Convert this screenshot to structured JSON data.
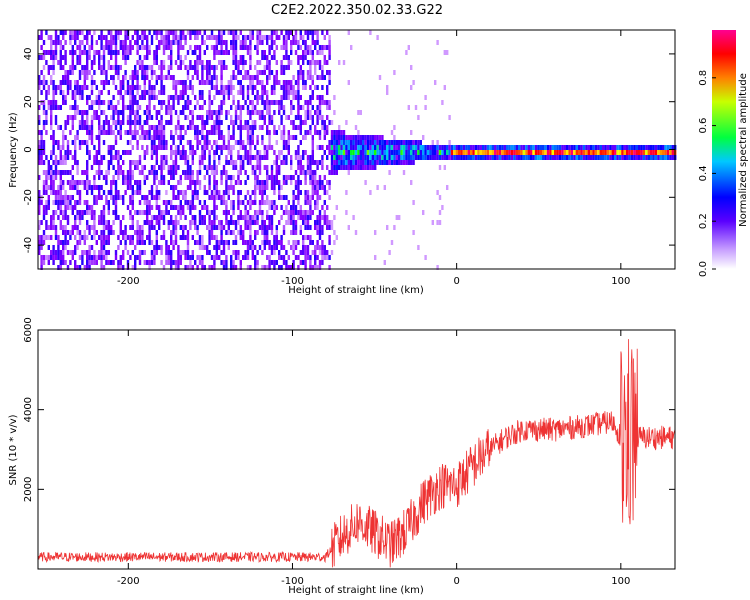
{
  "figure_title": "C2E2.2022.350.02.33.G22",
  "chart_data": [
    {
      "type": "heatmap",
      "xlabel": "Height of straight line (km)",
      "ylabel": "Frequency (Hz)",
      "xlim": [
        -255,
        133
      ],
      "ylim": [
        -50,
        50
      ],
      "xticks": [
        "-200",
        "-100",
        "0",
        "100"
      ],
      "xtick_values": [
        -200,
        -100,
        0,
        100
      ],
      "yticks": [
        "-40",
        "-20",
        "0",
        "20",
        "40"
      ],
      "ytick_values": [
        -40,
        -20,
        0,
        20,
        40
      ],
      "colorbar": {
        "label": "Normalized spectral amplitude",
        "range": [
          0,
          1
        ],
        "ticks": [
          "0.0",
          "0.2",
          "0.4",
          "0.6",
          "0.8"
        ],
        "tick_values": [
          0.0,
          0.2,
          0.4,
          0.6,
          0.8
        ],
        "colormap": [
          "#ffffff",
          "#8a00ff",
          "#0000ff",
          "#00c8ff",
          "#00ff00",
          "#ffff00",
          "#ff8000",
          "#ff0000",
          "#ff0090"
        ]
      },
      "regions": [
        {
          "x_range": [
            -255,
            -78
          ],
          "description": "broadband noise",
          "freq_range": [
            -50,
            50
          ],
          "amplitude": [
            0.0,
            0.2
          ]
        },
        {
          "x_range": [
            -78,
            -5
          ],
          "description": "emerging carrier",
          "freq_range": [
            -8,
            8
          ],
          "amplitude": [
            0.1,
            0.6
          ]
        },
        {
          "x_range": [
            -5,
            133
          ],
          "description": "strong carrier",
          "freq_range": [
            -2,
            2
          ],
          "amplitude": [
            0.5,
            1.0
          ]
        }
      ]
    },
    {
      "type": "line",
      "xlabel": "Height of straight line (km)",
      "ylabel": "SNR (10 * v/v)",
      "xlim": [
        -255,
        133
      ],
      "ylim": [
        0,
        6000
      ],
      "xticks": [
        "-200",
        "-100",
        "0",
        "100"
      ],
      "xtick_values": [
        -200,
        -100,
        0,
        100
      ],
      "yticks": [
        "2000",
        "4000",
        "6000"
      ],
      "ytick_values": [
        2000,
        4000,
        6000
      ],
      "series_color": "#ee3333",
      "trend": {
        "x": [
          -255,
          -80,
          -70,
          -60,
          -50,
          -40,
          -30,
          -20,
          -10,
          0,
          10,
          20,
          30,
          40,
          60,
          80,
          95,
          102,
          106,
          110,
          120,
          133
        ],
        "y": [
          300,
          300,
          800,
          1200,
          900,
          600,
          1000,
          1700,
          2100,
          2100,
          2600,
          3000,
          3300,
          3500,
          3500,
          3600,
          3700,
          3200,
          3400,
          3300,
          3300,
          3300
        ]
      }
    }
  ]
}
